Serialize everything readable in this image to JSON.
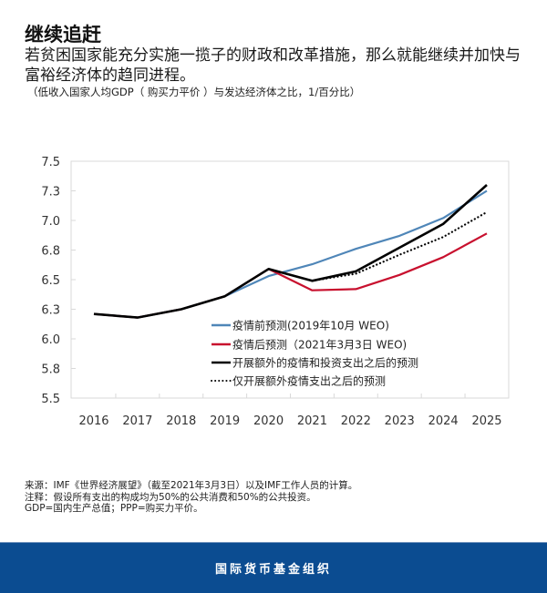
{
  "header": {
    "title": "继续追赶",
    "subtitle": "若贫困国家能充分实施一揽子的财政和改革措施，那么就能继续并加快与富裕经济体的趋同进程。",
    "unit_note": "（低收入国家人均GDP（ 购买力平价 ）与发达经济体之比，1/百分比）"
  },
  "chart_data": {
    "type": "line",
    "title": "继续追赶",
    "xlabel": "",
    "ylabel": "",
    "x": [
      "2016",
      "2017",
      "2018",
      "2019",
      "2020",
      "2021",
      "2022",
      "2023",
      "2024",
      "2025"
    ],
    "ylim": [
      5.5,
      7.5
    ],
    "yticks": [
      5.5,
      5.75,
      6.0,
      6.25,
      6.5,
      6.75,
      7.0,
      7.25,
      7.5
    ],
    "ytick_labels": [
      "5.5",
      "5.8",
      "6.0",
      "6.3",
      "6.5",
      "6.8",
      "7.0",
      "7.3",
      "7.5"
    ],
    "grid": false,
    "legend_position": "bottom-center-inside",
    "series": [
      {
        "name": "疫情前预测(2019年10月 WEO)",
        "color": "#4f86b8",
        "style": "solid",
        "values": [
          6.21,
          6.18,
          6.25,
          6.36,
          6.53,
          6.63,
          6.76,
          6.87,
          7.02,
          7.25
        ]
      },
      {
        "name": "疫情后预测（2021年3月3日 WEO)",
        "color": "#c8102e",
        "style": "solid",
        "values": [
          6.21,
          6.18,
          6.25,
          6.36,
          6.59,
          6.41,
          6.42,
          6.54,
          6.69,
          6.89
        ]
      },
      {
        "name": "开展额外的疫情和投资支出之后的预测",
        "color": "#000000",
        "style": "solid",
        "values": [
          6.21,
          6.18,
          6.25,
          6.36,
          6.59,
          6.49,
          6.57,
          6.77,
          6.97,
          7.3
        ]
      },
      {
        "name": "仅开展额外疫情支出之后的预测",
        "color": "#000000",
        "style": "dotted",
        "values": [
          null,
          null,
          null,
          null,
          6.59,
          6.49,
          6.55,
          6.71,
          6.86,
          7.07
        ]
      }
    ]
  },
  "footnotes": {
    "source": "来源：IMF《世界经济展望》（截至2021年3月3日）以及IMF工作人员的计算。",
    "note": "注释：假设所有支出的构成均为50%的公共消费和50%的公共投资。",
    "abbrev": "GDP=国内生产总值；PPP=购买力平价。"
  },
  "footer": {
    "org_name": "国际货币基金组织",
    "background_color": "#0b4c91"
  }
}
